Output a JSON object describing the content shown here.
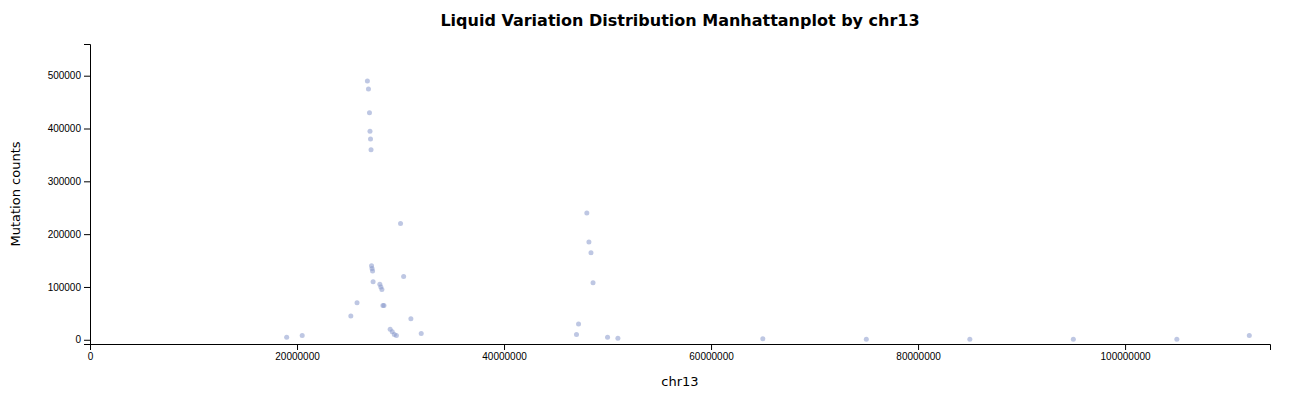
{
  "chart_data": {
    "type": "scatter",
    "title": "Liquid Variation Distribution Manhattanplot by chr13",
    "xlabel": "chr13",
    "ylabel": "Mutation counts",
    "color": "#8899cc",
    "x": [
      19000000,
      20500000,
      25200000,
      25800000,
      26800000,
      26900000,
      27000000,
      27050000,
      27100000,
      27150000,
      27200000,
      27250000,
      27300000,
      27350000,
      28000000,
      28100000,
      28200000,
      28300000,
      28400000,
      29000000,
      29200000,
      29400000,
      29600000,
      30000000,
      30300000,
      31000000,
      32000000,
      47000000,
      47200000,
      48000000,
      48200000,
      48400000,
      48600000,
      50000000,
      51000000,
      65000000,
      75000000,
      85000000,
      95000000,
      105000000,
      112000000
    ],
    "values": [
      5000,
      8000,
      45000,
      70000,
      490000,
      475000,
      430000,
      395000,
      380000,
      360000,
      140000,
      135000,
      130000,
      110000,
      105000,
      100000,
      95000,
      65000,
      65000,
      20000,
      15000,
      10000,
      8000,
      220000,
      120000,
      40000,
      12000,
      10000,
      30000,
      240000,
      185000,
      165000,
      108000,
      5000,
      3000,
      2000,
      1000,
      1000,
      1000,
      1000,
      8000
    ],
    "xlim": [
      0,
      114000000
    ],
    "ylim": [
      -8000,
      560000
    ],
    "xticks": [
      0,
      20000000,
      40000000,
      60000000,
      80000000,
      100000000
    ],
    "yticks": [
      0,
      100000,
      200000,
      300000,
      400000,
      500000
    ],
    "grid": false
  }
}
